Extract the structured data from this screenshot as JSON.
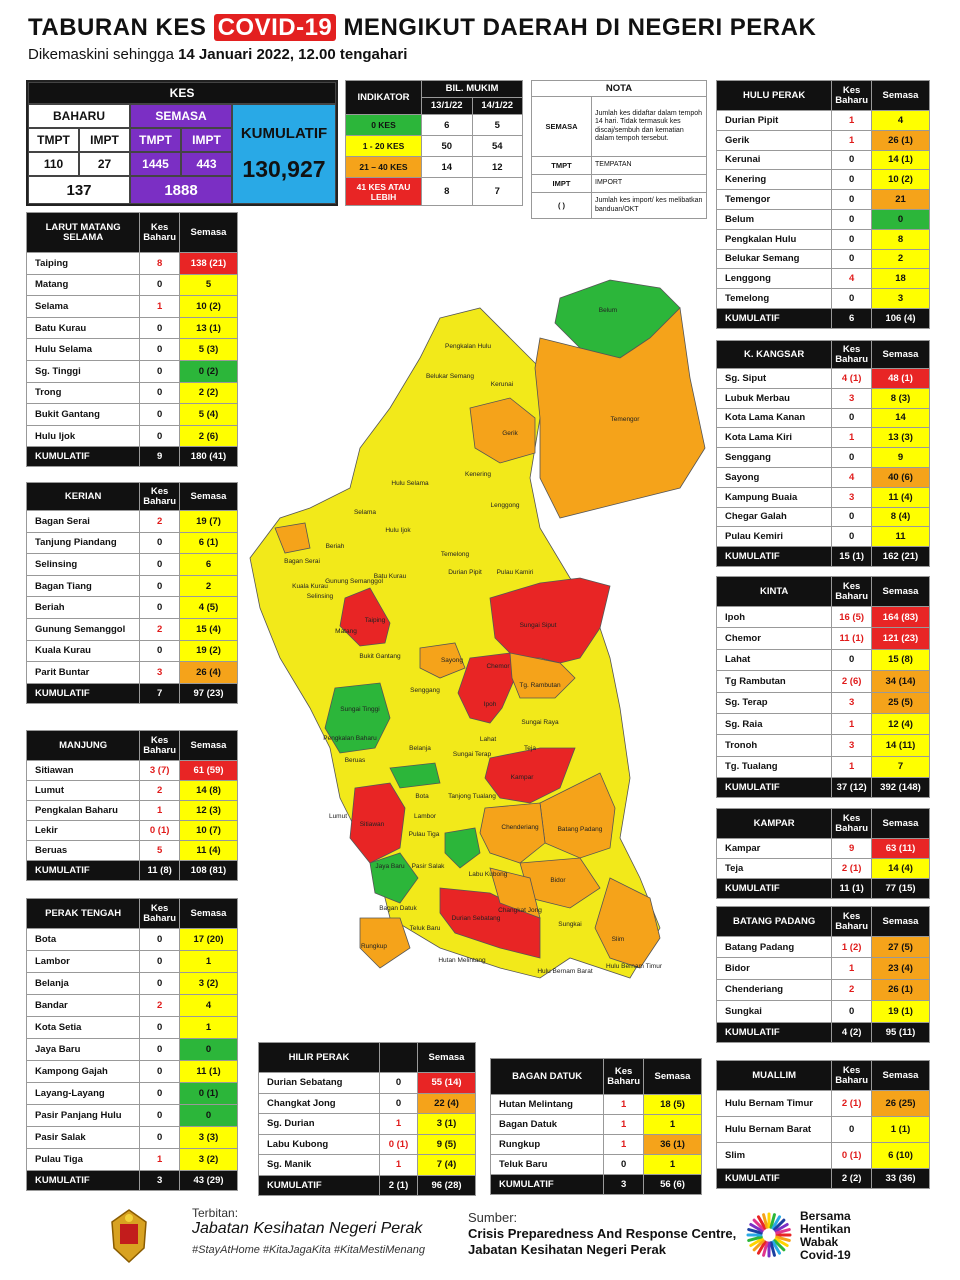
{
  "title": {
    "pre": "TABURAN KES",
    "highlight": "COVID-19",
    "post": "MENGIKUT DAERAH DI NEGERI PERAK"
  },
  "subtitle": {
    "pre": "Dikemaskini sehingga",
    "date": "14 Januari 2022, 12.00 tengahari"
  },
  "kes": {
    "header": "KES",
    "baharu": "BAHARU",
    "semasa": "SEMASA",
    "kumulatif": "KUMULATIF",
    "tmpt": "TMPT",
    "impt": "IMPT",
    "baharu_tmpt": "110",
    "baharu_impt": "27",
    "semasa_tmpt": "1445",
    "semasa_impt": "443",
    "baharu_total": "137",
    "semasa_total": "1888",
    "kumulatif_total": "130,927"
  },
  "indikator": {
    "header": "INDIKATOR",
    "bil": "BIL. MUKIM",
    "d1": "13/1/22",
    "d2": "14/1/22",
    "rows": [
      {
        "label": "0 KES",
        "a": "6",
        "b": "5",
        "color": "#2cb63a"
      },
      {
        "label": "1 - 20 KES",
        "a": "50",
        "b": "54",
        "color": "#ffff00"
      },
      {
        "label": "21 – 40 KES",
        "a": "14",
        "b": "12",
        "color": "#f5a31a"
      },
      {
        "label": "41 KES ATAU LEBIH",
        "a": "8",
        "b": "7",
        "color": "#e82525"
      }
    ]
  },
  "nota": {
    "header": "NOTA",
    "rows": [
      {
        "k": "SEMASA",
        "v": "Jumlah kes didaftar dalam tempoh 14 hari. Tidak termasuk kes discaj/sembuh dan kematian dalam tempoh tersebut."
      },
      {
        "k": "TMPT",
        "v": "TEMPATAN"
      },
      {
        "k": "IMPT",
        "v": "IMPORT"
      },
      {
        "k": "(    )",
        "v": "Jumlah kes import/ kes melibatkan banduan/OKT"
      }
    ]
  },
  "col_kes_baharu": "Kes Baharu",
  "col_semasa": "Semasa",
  "districts": {
    "lms": {
      "name": "LARUT MATANG SELAMA",
      "rows": [
        [
          "Taiping",
          "8",
          "138 (21)",
          "r"
        ],
        [
          "Matang",
          "0",
          "5",
          "y"
        ],
        [
          "Selama",
          "1",
          "10 (2)",
          "y"
        ],
        [
          "Batu Kurau",
          "0",
          "13 (1)",
          "y"
        ],
        [
          "Hulu Selama",
          "0",
          "5 (3)",
          "y"
        ],
        [
          "Sg. Tinggi",
          "0",
          "0 (2)",
          "g"
        ],
        [
          "Trong",
          "0",
          "2 (2)",
          "y"
        ],
        [
          "Bukit Gantang",
          "0",
          "5 (4)",
          "y"
        ],
        [
          "Hulu Ijok",
          "0",
          "2 (6)",
          "y"
        ]
      ],
      "total": [
        "KUMULATIF",
        "9",
        "180 (41)"
      ]
    },
    "kerian": {
      "name": "KERIAN",
      "rows": [
        [
          "Bagan Serai",
          "2",
          "19 (7)",
          "y"
        ],
        [
          "Tanjung Piandang",
          "0",
          "6 (1)",
          "y"
        ],
        [
          "Selinsing",
          "0",
          "6",
          "y"
        ],
        [
          "Bagan Tiang",
          "0",
          "2",
          "y"
        ],
        [
          "Beriah",
          "0",
          "4 (5)",
          "y"
        ],
        [
          "Gunung Semanggol",
          "2",
          "15 (4)",
          "y"
        ],
        [
          "Kuala Kurau",
          "0",
          "19 (2)",
          "y"
        ],
        [
          "Parit Buntar",
          "3",
          "26 (4)",
          "o"
        ]
      ],
      "total": [
        "KUMULATIF",
        "7",
        "97 (23)"
      ]
    },
    "manjung": {
      "name": "MANJUNG",
      "rows": [
        [
          "Sitiawan",
          "3 (7)",
          "61 (59)",
          "r"
        ],
        [
          "Lumut",
          "2",
          "14 (8)",
          "y"
        ],
        [
          "Pengkalan Baharu",
          "1",
          "12 (3)",
          "y"
        ],
        [
          "Lekir",
          "0 (1)",
          "10 (7)",
          "y"
        ],
        [
          "Beruas",
          "5",
          "11 (4)",
          "y"
        ]
      ],
      "total": [
        "KUMULATIF",
        "11 (8)",
        "108 (81)"
      ]
    },
    "perak_tengah": {
      "name": "PERAK TENGAH",
      "rows": [
        [
          "Bota",
          "0",
          "17 (20)",
          "y"
        ],
        [
          "Lambor",
          "0",
          "1",
          "y"
        ],
        [
          "Belanja",
          "0",
          "3 (2)",
          "y"
        ],
        [
          "Bandar",
          "2",
          "4",
          "y"
        ],
        [
          "Kota Setia",
          "0",
          "1",
          "y"
        ],
        [
          "Jaya Baru",
          "0",
          "0",
          "g"
        ],
        [
          "Kampong Gajah",
          "0",
          "11 (1)",
          "y"
        ],
        [
          "Layang-Layang",
          "0",
          "0 (1)",
          "g"
        ],
        [
          "Pasir Panjang Hulu",
          "0",
          "0",
          "g"
        ],
        [
          "Pasir Salak",
          "0",
          "3 (3)",
          "y"
        ],
        [
          "Pulau Tiga",
          "1",
          "3 (2)",
          "y"
        ]
      ],
      "total": [
        "KUMULATIF",
        "3",
        "43 (29)"
      ]
    },
    "hilir_perak": {
      "name": "HILIR PERAK",
      "rows": [
        [
          "Durian Sebatang",
          "0",
          "55 (14)",
          "r"
        ],
        [
          "Changkat Jong",
          "0",
          "22 (4)",
          "o"
        ],
        [
          "Sg. Durian",
          "1",
          "3 (1)",
          "y"
        ],
        [
          "Labu Kubong",
          "0 (1)",
          "9 (5)",
          "y"
        ],
        [
          "Sg. Manik",
          "1",
          "7 (4)",
          "y"
        ]
      ],
      "total": [
        "KUMULATIF",
        "2 (1)",
        "96 (28)"
      ]
    },
    "bagan_datuk": {
      "name": "BAGAN DATUK",
      "rows": [
        [
          "Hutan Melintang",
          "1",
          "18 (5)",
          "y"
        ],
        [
          "Bagan Datuk",
          "1",
          "1",
          "y"
        ],
        [
          "Rungkup",
          "1",
          "36 (1)",
          "o"
        ],
        [
          "Teluk Baru",
          "0",
          "1",
          "y"
        ]
      ],
      "total": [
        "KUMULATIF",
        "3",
        "56 (6)"
      ]
    },
    "hulu_perak": {
      "name": "HULU PERAK",
      "rows": [
        [
          "Durian Pipit",
          "1",
          "4",
          "y"
        ],
        [
          "Gerik",
          "1",
          "26 (1)",
          "o"
        ],
        [
          "Kerunai",
          "0",
          "14 (1)",
          "y"
        ],
        [
          "Kenering",
          "0",
          "10 (2)",
          "y"
        ],
        [
          "Temengor",
          "0",
          "21",
          "o"
        ],
        [
          "Belum",
          "0",
          "0",
          "g"
        ],
        [
          "Pengkalan Hulu",
          "0",
          "8",
          "y"
        ],
        [
          "Belukar Semang",
          "0",
          "2",
          "y"
        ],
        [
          "Lenggong",
          "4",
          "18",
          "y"
        ],
        [
          "Temelong",
          "0",
          "3",
          "y"
        ]
      ],
      "total": [
        "KUMULATIF",
        "6",
        "106 (4)"
      ]
    },
    "k_kangsar": {
      "name": "K. KANGSAR",
      "rows": [
        [
          "Sg. Siput",
          "4 (1)",
          "48 (1)",
          "r"
        ],
        [
          "Lubuk Merbau",
          "3",
          "8 (3)",
          "y"
        ],
        [
          "Kota Lama Kanan",
          "0",
          "14",
          "y"
        ],
        [
          "Kota Lama Kiri",
          "1",
          "13 (3)",
          "y"
        ],
        [
          "Senggang",
          "0",
          "9",
          "y"
        ],
        [
          "Sayong",
          "4",
          "40 (6)",
          "o"
        ],
        [
          "Kampung Buaia",
          "3",
          "11 (4)",
          "y"
        ],
        [
          "Chegar Galah",
          "0",
          "8 (4)",
          "y"
        ],
        [
          "Pulau Kemiri",
          "0",
          "11",
          "y"
        ]
      ],
      "total": [
        "KUMULATIF",
        "15 (1)",
        "162 (21)"
      ]
    },
    "kinta": {
      "name": "KINTA",
      "rows": [
        [
          "Ipoh",
          "16 (5)",
          "164 (83)",
          "r"
        ],
        [
          "Chemor",
          "11 (1)",
          "121 (23)",
          "r"
        ],
        [
          "Lahat",
          "0",
          "15 (8)",
          "y"
        ],
        [
          "Tg Rambutan",
          "2 (6)",
          "34 (14)",
          "o"
        ],
        [
          "Sg. Terap",
          "3",
          "25 (5)",
          "o"
        ],
        [
          "Sg. Raia",
          "1",
          "12 (4)",
          "y"
        ],
        [
          "Tronoh",
          "3",
          "14 (11)",
          "y"
        ],
        [
          "Tg. Tualang",
          "1",
          "7",
          "y"
        ]
      ],
      "total": [
        "KUMULATIF",
        "37 (12)",
        "392 (148)"
      ]
    },
    "kampar": {
      "name": "KAMPAR",
      "rows": [
        [
          "Kampar",
          "9",
          "63 (11)",
          "r"
        ],
        [
          "Teja",
          "2 (1)",
          "14 (4)",
          "y"
        ]
      ],
      "total": [
        "KUMULATIF",
        "11 (1)",
        "77 (15)"
      ]
    },
    "batang_padang": {
      "name": "BATANG PADANG",
      "rows": [
        [
          "Batang Padang",
          "1 (2)",
          "27 (5)",
          "o"
        ],
        [
          "Bidor",
          "1",
          "23 (4)",
          "o"
        ],
        [
          "Chenderiang",
          "2",
          "26 (1)",
          "o"
        ],
        [
          "Sungkai",
          "0",
          "19 (1)",
          "y"
        ]
      ],
      "total": [
        "KUMULATIF",
        "4 (2)",
        "95 (11)"
      ]
    },
    "muallim": {
      "name": "MUALLIM",
      "rows": [
        [
          "Hulu Bernam Timur",
          "2 (1)",
          "26 (25)",
          "o"
        ],
        [
          "Hulu Bernam Barat",
          "0",
          "1 (1)",
          "y"
        ],
        [
          "Slim",
          "0 (1)",
          "6 (10)",
          "y"
        ]
      ],
      "total": [
        "KUMULATIF",
        "2 (2)",
        "33 (36)"
      ]
    }
  },
  "map_labels": [
    {
      "t": "Belum"
    },
    {
      "t": "Pengkalan Hulu"
    },
    {
      "t": "Belukar Semang"
    },
    {
      "t": "Kerunai"
    },
    {
      "t": "Gerik"
    },
    {
      "t": "Temengor"
    },
    {
      "t": "Kenering"
    },
    {
      "t": "Lenggong"
    },
    {
      "t": "Hulu Selama"
    },
    {
      "t": "Selama"
    },
    {
      "t": "Hulu Ijok"
    },
    {
      "t": "Temelong"
    },
    {
      "t": "Durian Pipit"
    },
    {
      "t": "Pulau Kamiri"
    },
    {
      "t": "Sungai Siput"
    },
    {
      "t": "Taiping"
    },
    {
      "t": "Chemor"
    },
    {
      "t": "Ipoh"
    },
    {
      "t": "Tg. Rambutan"
    },
    {
      "t": "Sungai Raya"
    },
    {
      "t": "Sayong"
    },
    {
      "t": "Senggang"
    },
    {
      "t": "Sungai Tinggi"
    },
    {
      "t": "Kampar"
    },
    {
      "t": "Chenderiang"
    },
    {
      "t": "Batang Padang"
    },
    {
      "t": "Bidor"
    },
    {
      "t": "Sungkai"
    },
    {
      "t": "Slim"
    },
    {
      "t": "Hulu Bernam Timur"
    },
    {
      "t": "Hulu Bernam Barat"
    },
    {
      "t": "Sitiawan"
    },
    {
      "t": "Lumut"
    },
    {
      "t": "Beruas"
    },
    {
      "t": "Bota"
    },
    {
      "t": "Lambor"
    },
    {
      "t": "Durian Sebatang"
    },
    {
      "t": "Changkat Jong"
    },
    {
      "t": "Hutan Melintang"
    },
    {
      "t": "Rungkup"
    },
    {
      "t": "Bagan Datuk"
    },
    {
      "t": "Teluk Baru"
    },
    {
      "t": "Pengkalan Baharu"
    },
    {
      "t": "Belanja"
    },
    {
      "t": "Batu Kurau"
    },
    {
      "t": "Bagan Serai"
    },
    {
      "t": "Beriah"
    },
    {
      "t": "Gunung Semanggol"
    },
    {
      "t": "Kuala Kurau"
    },
    {
      "t": "Selinsing"
    },
    {
      "t": "Matang"
    },
    {
      "t": "Bukit Gantang"
    },
    {
      "t": "Pulau Tiga"
    },
    {
      "t": "Jaya Baru"
    },
    {
      "t": "Teja"
    },
    {
      "t": "Lahat"
    },
    {
      "t": "Sungai Terap"
    },
    {
      "t": "Tanjong Tualang"
    },
    {
      "t": "Pasir Salak"
    },
    {
      "t": "Labu Kubong"
    }
  ],
  "footer": {
    "terbitan_label": "Terbitan:",
    "terbitan": "Jabatan Kesihatan Negeri Perak",
    "hashtags": "#StayAtHome #KitaJagaKita #KitaMestiMenang",
    "sumber_label": "Sumber:",
    "sumber1": "Crisis Preparedness And Response Centre,",
    "sumber2": "Jabatan Kesihatan Negeri Perak",
    "campaign": [
      "Bersama",
      "Hentikan",
      "Wabak",
      "Covid-19"
    ]
  }
}
